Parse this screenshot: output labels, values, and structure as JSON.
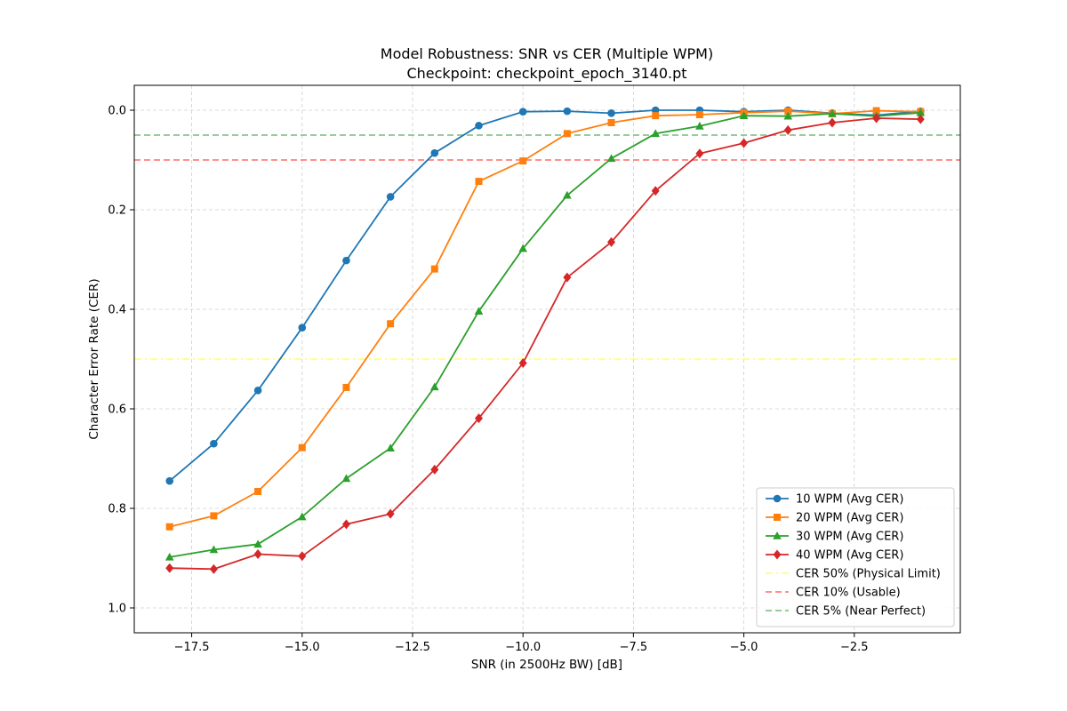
{
  "chart_data": {
    "type": "line",
    "title": "Model Robustness: SNR vs CER (Multiple WPM)",
    "subtitle": "Checkpoint: checkpoint_epoch_3140.pt",
    "xlabel": "SNR (in 2500Hz BW) [dB]",
    "ylabel": "Character Error Rate (CER)",
    "xlim": [
      -18.8,
      -0.1
    ],
    "ylim": [
      1.05,
      -0.05
    ],
    "y_inverted": true,
    "grid": true,
    "grid_style": "dashed",
    "legend_position": "lower-right",
    "x_ticks": [
      -17.5,
      -15.0,
      -12.5,
      -10.0,
      -7.5,
      -5.0,
      -2.5
    ],
    "x_tick_labels": [
      "−17.5",
      "−15.0",
      "−12.5",
      "−10.0",
      "−7.5",
      "−5.0",
      "−2.5"
    ],
    "y_ticks": [
      0.0,
      0.2,
      0.4,
      0.6,
      0.8,
      1.0
    ],
    "y_tick_labels": [
      "0.0",
      "0.2",
      "0.4",
      "0.6",
      "0.8",
      "1.0"
    ],
    "x": [
      -18,
      -17,
      -16,
      -15,
      -14,
      -13,
      -12,
      -11,
      -10,
      -9,
      -8,
      -7,
      -6,
      -5,
      -4,
      -3,
      -2,
      -1
    ],
    "series": [
      {
        "name": "10 WPM (Avg CER)",
        "color": "#1f77b4",
        "marker": "circle",
        "values": [
          0.745,
          0.67,
          0.563,
          0.437,
          0.302,
          0.174,
          0.086,
          0.031,
          0.003,
          0.002,
          0.006,
          0.0,
          0.0,
          0.003,
          0.0,
          0.006,
          0.01,
          0.002
        ]
      },
      {
        "name": "20 WPM (Avg CER)",
        "color": "#ff7f0e",
        "marker": "square",
        "values": [
          0.837,
          0.815,
          0.766,
          0.678,
          0.557,
          0.429,
          0.319,
          0.143,
          0.102,
          0.047,
          0.025,
          0.011,
          0.009,
          0.005,
          0.002,
          0.007,
          0.001,
          0.003
        ]
      },
      {
        "name": "30 WPM (Avg CER)",
        "color": "#2ca02c",
        "marker": "triangle",
        "values": [
          0.898,
          0.883,
          0.872,
          0.817,
          0.74,
          0.679,
          0.556,
          0.404,
          0.278,
          0.171,
          0.097,
          0.047,
          0.032,
          0.011,
          0.012,
          0.007,
          0.012,
          0.005
        ]
      },
      {
        "name": "40 WPM (Avg CER)",
        "color": "#d62728",
        "marker": "diamond",
        "values": [
          0.92,
          0.922,
          0.892,
          0.896,
          0.832,
          0.811,
          0.722,
          0.619,
          0.508,
          0.336,
          0.265,
          0.162,
          0.087,
          0.066,
          0.04,
          0.025,
          0.016,
          0.018
        ]
      }
    ],
    "reference_lines": [
      {
        "name": "CER 50% (Physical Limit)",
        "y": 0.5,
        "color": "#ffff66",
        "style": "dashdot"
      },
      {
        "name": "CER 10% (Usable)",
        "y": 0.1,
        "color": "#ff6b6b",
        "style": "dashed"
      },
      {
        "name": "CER 5% (Near Perfect)",
        "y": 0.05,
        "color": "#77bb77",
        "style": "dashed"
      }
    ]
  }
}
